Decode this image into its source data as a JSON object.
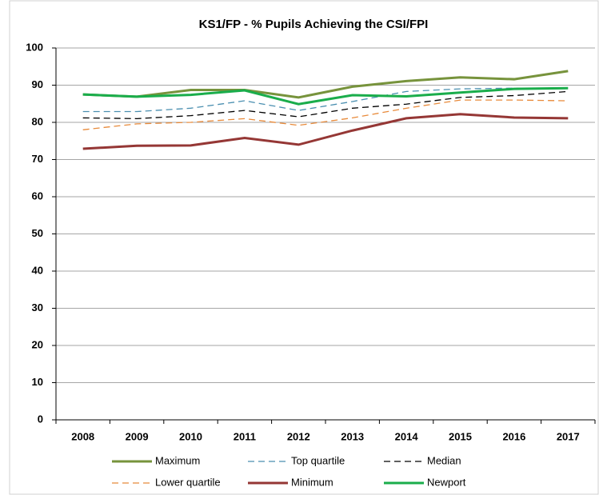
{
  "chart_data": {
    "type": "line",
    "title": "KS1/FP - % Pupils Achieving the CSI/FPI",
    "categories": [
      "2008",
      "2009",
      "2010",
      "2011",
      "2012",
      "2013",
      "2014",
      "2015",
      "2016",
      "2017"
    ],
    "ylim": [
      0,
      100
    ],
    "yticks": [
      0,
      10,
      20,
      30,
      40,
      50,
      60,
      70,
      80,
      90,
      100
    ],
    "grid": true,
    "series": [
      {
        "name": "Maximum",
        "color": "#77933c",
        "dashed": false,
        "values": [
          87.5,
          86.9,
          88.7,
          88.7,
          86.7,
          89.6,
          91.1,
          92.1,
          91.6,
          93.8
        ]
      },
      {
        "name": "Top quartile",
        "color": "#4a8fb0",
        "dashed": true,
        "values": [
          82.9,
          82.9,
          83.8,
          85.8,
          83.2,
          85.6,
          88.3,
          89.0,
          89.2,
          89.2
        ]
      },
      {
        "name": "Median",
        "color": "#000000",
        "dashed": true,
        "values": [
          81.2,
          81.0,
          81.8,
          83.2,
          81.5,
          83.8,
          84.9,
          86.7,
          87.2,
          88.3
        ]
      },
      {
        "name": "Lower quartile",
        "color": "#e88a3a",
        "dashed": true,
        "values": [
          78.0,
          79.6,
          80.0,
          81.0,
          79.2,
          81.2,
          83.8,
          86.0,
          86.0,
          85.8
        ]
      },
      {
        "name": "Minimum",
        "color": "#953735",
        "dashed": false,
        "values": [
          72.9,
          73.7,
          73.8,
          75.8,
          74.0,
          77.8,
          81.1,
          82.2,
          81.3,
          81.1
        ]
      },
      {
        "name": "Newport",
        "color": "#1aad4b",
        "dashed": false,
        "values": [
          87.5,
          86.9,
          87.4,
          88.6,
          84.9,
          87.3,
          87.0,
          88.0,
          89.0,
          89.2
        ]
      }
    ]
  }
}
